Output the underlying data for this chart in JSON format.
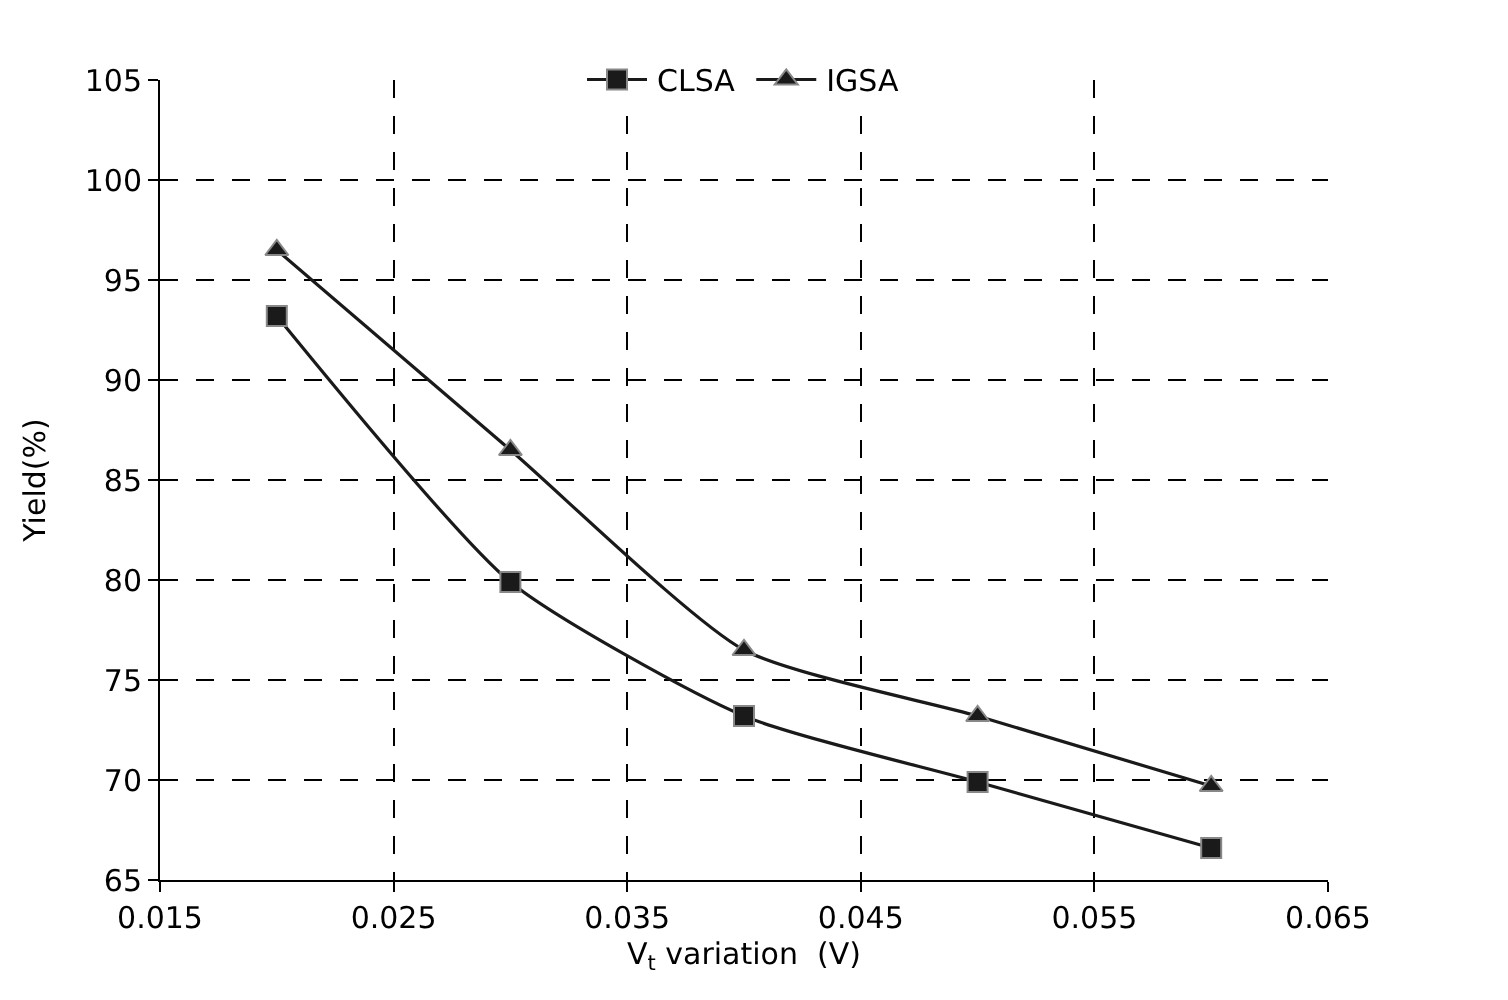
{
  "chart_data": {
    "type": "line",
    "xlabel": "V$_{t}$ variation  (V)",
    "ylabel": "Yield(%)",
    "x": [
      0.02,
      0.03,
      0.04,
      0.05,
      0.06
    ],
    "series": [
      {
        "name": "CLSA",
        "color": "#1a1a1a",
        "marker": "square",
        "values": [
          93.2,
          79.9,
          73.2,
          69.9,
          66.6
        ]
      },
      {
        "name": "IGSA",
        "color": "#1a1a1a",
        "marker": "triangle",
        "values": [
          96.5,
          86.5,
          76.5,
          73.2,
          69.7
        ]
      }
    ],
    "xlim": [
      0.015,
      0.065
    ],
    "xticks": [
      {
        "value": 0.015,
        "label": "0.015"
      },
      {
        "value": 0.025,
        "label": "0.025"
      },
      {
        "value": 0.035,
        "label": "0.035"
      },
      {
        "value": 0.045,
        "label": "0.045"
      },
      {
        "value": 0.055,
        "label": "0.055"
      },
      {
        "value": 0.065,
        "label": "0.065"
      }
    ],
    "ylim": [
      65,
      105
    ],
    "yticks": [
      65,
      70,
      75,
      80,
      85,
      90,
      95,
      100,
      105
    ],
    "grid": true,
    "legend": "top",
    "line_style": "solid"
  }
}
